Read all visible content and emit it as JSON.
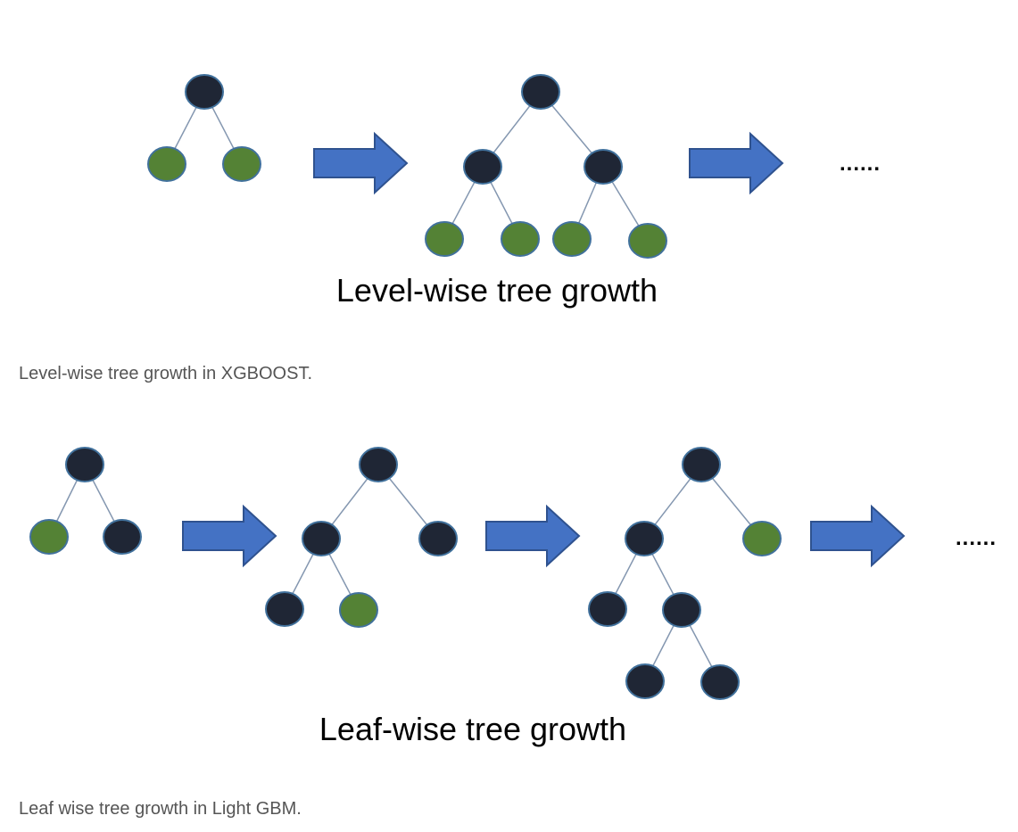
{
  "colors": {
    "internal_node": "#1f2635",
    "leaf_node": "#548235",
    "node_outline": "#41719c",
    "edge": "#8497b0",
    "arrow_fill": "#4472c4",
    "arrow_outline": "#2f528f",
    "caption_text": "#555555"
  },
  "level_wise": {
    "title": "Level-wise tree growth",
    "ellipsis": "......",
    "caption": "Level-wise tree growth in XGBOOST.",
    "trees": [
      {
        "nodes": [
          {
            "id": "r",
            "kind": "internal"
          },
          {
            "id": "a",
            "kind": "leaf"
          },
          {
            "id": "b",
            "kind": "leaf"
          }
        ],
        "edges": [
          [
            "r",
            "a"
          ],
          [
            "r",
            "b"
          ]
        ]
      },
      {
        "nodes": [
          {
            "id": "r",
            "kind": "internal"
          },
          {
            "id": "a",
            "kind": "internal"
          },
          {
            "id": "b",
            "kind": "internal"
          },
          {
            "id": "a1",
            "kind": "leaf"
          },
          {
            "id": "a2",
            "kind": "leaf"
          },
          {
            "id": "b1",
            "kind": "leaf"
          },
          {
            "id": "b2",
            "kind": "leaf"
          }
        ],
        "edges": [
          [
            "r",
            "a"
          ],
          [
            "r",
            "b"
          ],
          [
            "a",
            "a1"
          ],
          [
            "a",
            "a2"
          ],
          [
            "b",
            "b1"
          ],
          [
            "b",
            "b2"
          ]
        ]
      }
    ]
  },
  "leaf_wise": {
    "title": "Leaf-wise tree growth",
    "ellipsis": "......",
    "caption": "Leaf wise tree growth in Light GBM.",
    "trees": [
      {
        "nodes": [
          {
            "id": "r",
            "kind": "internal"
          },
          {
            "id": "a",
            "kind": "leaf"
          },
          {
            "id": "b",
            "kind": "internal"
          }
        ],
        "edges": [
          [
            "r",
            "a"
          ],
          [
            "r",
            "b"
          ]
        ]
      },
      {
        "nodes": [
          {
            "id": "r",
            "kind": "internal"
          },
          {
            "id": "a",
            "kind": "internal"
          },
          {
            "id": "b",
            "kind": "internal"
          },
          {
            "id": "a1",
            "kind": "internal"
          },
          {
            "id": "a2",
            "kind": "leaf"
          }
        ],
        "edges": [
          [
            "r",
            "a"
          ],
          [
            "r",
            "b"
          ],
          [
            "a",
            "a1"
          ],
          [
            "a",
            "a2"
          ]
        ]
      },
      {
        "nodes": [
          {
            "id": "r",
            "kind": "internal"
          },
          {
            "id": "a",
            "kind": "internal"
          },
          {
            "id": "b",
            "kind": "leaf"
          },
          {
            "id": "a1",
            "kind": "internal"
          },
          {
            "id": "a2",
            "kind": "internal"
          },
          {
            "id": "a21",
            "kind": "internal"
          },
          {
            "id": "a22",
            "kind": "internal"
          }
        ],
        "edges": [
          [
            "r",
            "a"
          ],
          [
            "r",
            "b"
          ],
          [
            "a",
            "a1"
          ],
          [
            "a",
            "a2"
          ],
          [
            "a2",
            "a21"
          ],
          [
            "a2",
            "a22"
          ]
        ]
      }
    ]
  }
}
